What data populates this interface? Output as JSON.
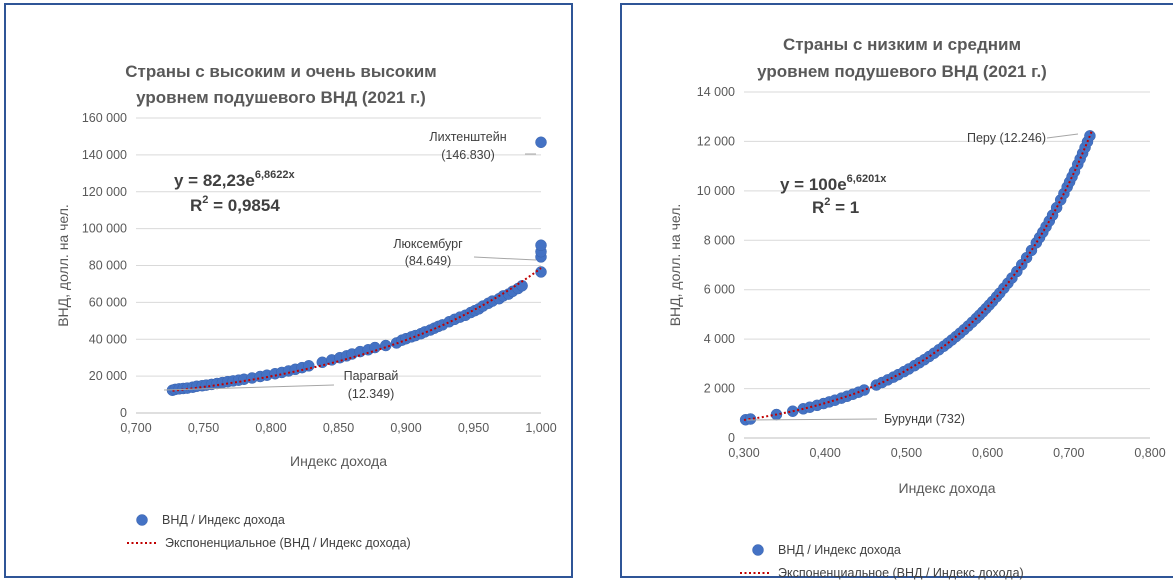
{
  "colors": {
    "marker": "#4472c4",
    "trendline": "#c00000",
    "border": "#2f5597"
  },
  "chart_data": [
    {
      "type": "scatter",
      "title_line1": "Страны с высоким и очень высоким",
      "title_line2": "уровнем подушевого ВНД (2021 г.)",
      "xlabel": "Индекс дохода",
      "ylabel": "ВНД, долл. на чел.",
      "xlim": [
        0.7,
        1.0
      ],
      "ylim": [
        0,
        160000
      ],
      "grid": "horizontal",
      "legend_position": "bottom",
      "xticks": [
        "0,700",
        "0,750",
        "0,800",
        "0,850",
        "0,900",
        "0,950",
        "1,000"
      ],
      "yticks": [
        "0",
        "20 000",
        "40 000",
        "60 000",
        "80 000",
        "100 000",
        "120 000",
        "140 000",
        "160 000"
      ],
      "equation_base": "y = 82,23e",
      "equation_exp": "6,8622x",
      "r2_prefix": "R",
      "r2_sup": "2",
      "r2_value": " = 0,9854",
      "annotations": [
        {
          "line1": "Лихтенштейн",
          "line2": "(146.830)",
          "x": 1.0,
          "y": 146830
        },
        {
          "line1": "Люксембург",
          "line2": "(84.649)",
          "x": 1.0,
          "y": 84649
        },
        {
          "line1": "Парагвай",
          "line2": "(12.349)",
          "x": 0.727,
          "y": 12349
        }
      ],
      "trend": {
        "a": 82.23,
        "b": 6.8622,
        "x_from": 0.727,
        "x_to": 1.0
      },
      "legend_points": "ВНД / Индекс дохода",
      "legend_trend": "Экспоненциальное (ВНД / Индекс дохода)",
      "points": [
        [
          0.727,
          12349
        ],
        [
          0.729,
          12800
        ],
        [
          0.732,
          13100
        ],
        [
          0.735,
          13300
        ],
        [
          0.738,
          13500
        ],
        [
          0.742,
          14000
        ],
        [
          0.745,
          14500
        ],
        [
          0.749,
          14800
        ],
        [
          0.752,
          15100
        ],
        [
          0.756,
          15500
        ],
        [
          0.76,
          16000
        ],
        [
          0.764,
          16500
        ],
        [
          0.768,
          17000
        ],
        [
          0.772,
          17400
        ],
        [
          0.776,
          17800
        ],
        [
          0.78,
          18300
        ],
        [
          0.786,
          19000
        ],
        [
          0.792,
          19800
        ],
        [
          0.797,
          20500
        ],
        [
          0.803,
          21300
        ],
        [
          0.808,
          22000
        ],
        [
          0.813,
          22800
        ],
        [
          0.818,
          23700
        ],
        [
          0.823,
          24600
        ],
        [
          0.828,
          25600
        ],
        [
          0.838,
          27500
        ],
        [
          0.845,
          28800
        ],
        [
          0.851,
          30000
        ],
        [
          0.856,
          31000
        ],
        [
          0.86,
          32000
        ],
        [
          0.866,
          33300
        ],
        [
          0.872,
          34300
        ],
        [
          0.877,
          35500
        ],
        [
          0.885,
          36600
        ],
        [
          0.893,
          38000
        ],
        [
          0.897,
          39500
        ],
        [
          0.9,
          40300
        ],
        [
          0.904,
          41300
        ],
        [
          0.907,
          42000
        ],
        [
          0.911,
          43000
        ],
        [
          0.914,
          44000
        ],
        [
          0.918,
          45000
        ],
        [
          0.921,
          46000
        ],
        [
          0.924,
          47000
        ],
        [
          0.927,
          47800
        ],
        [
          0.932,
          49500
        ],
        [
          0.936,
          50800
        ],
        [
          0.94,
          52000
        ],
        [
          0.944,
          53000
        ],
        [
          0.948,
          54500
        ],
        [
          0.951,
          55500
        ],
        [
          0.954,
          56500
        ],
        [
          0.957,
          58000
        ],
        [
          0.961,
          59500
        ],
        [
          0.964,
          60700
        ],
        [
          0.969,
          62000
        ],
        [
          0.972,
          63500
        ],
        [
          0.976,
          64500
        ],
        [
          0.979,
          66000
        ],
        [
          0.983,
          67500
        ],
        [
          0.986,
          69000
        ],
        [
          1.0,
          76500
        ],
        [
          1.0,
          84649
        ],
        [
          1.0,
          87500
        ],
        [
          1.0,
          91000
        ],
        [
          1.0,
          146830
        ]
      ]
    },
    {
      "type": "scatter",
      "title_line1": "Страны с низким и средним",
      "title_line2": "уровнем подушевого ВНД (2021 г.)",
      "xlabel": "Индекс дохода",
      "ylabel": "ВНД, долл. на чел.",
      "xlim": [
        0.3,
        0.8
      ],
      "ylim": [
        0,
        14000
      ],
      "grid": "horizontal",
      "legend_position": "bottom",
      "xticks": [
        "0,300",
        "0,400",
        "0,500",
        "0,600",
        "0,700",
        "0,800"
      ],
      "yticks": [
        "0",
        "2 000",
        "4 000",
        "6 000",
        "8 000",
        "10 000",
        "12 000",
        "14 000"
      ],
      "equation_base": "y = 100e",
      "equation_exp": "6,6201x",
      "r2_prefix": "R",
      "r2_sup": "2",
      "r2_value": " = 1",
      "annotations": [
        {
          "line1": "Перу (12.246)",
          "line2": "",
          "x": 0.726,
          "y": 12246
        },
        {
          "line1": "Бурунди (732)",
          "line2": "",
          "x": 0.302,
          "y": 732
        }
      ],
      "trend": {
        "a": 100,
        "b": 6.6201,
        "x_from": 0.3,
        "x_to": 0.728
      },
      "legend_points": "ВНД / Индекс дохода",
      "legend_trend": "Экспоненциальное (ВНД / Индекс дохода)",
      "points_auto": {
        "a": 100,
        "b": 6.6201,
        "x_values": [
          0.302,
          0.308,
          0.34,
          0.36,
          0.373,
          0.381,
          0.39,
          0.398,
          0.405,
          0.412,
          0.42,
          0.427,
          0.434,
          0.441,
          0.448,
          0.463,
          0.47,
          0.477,
          0.484,
          0.49,
          0.497,
          0.503,
          0.51,
          0.516,
          0.522,
          0.528,
          0.534,
          0.54,
          0.546,
          0.551,
          0.556,
          0.561,
          0.566,
          0.571,
          0.576,
          0.581,
          0.586,
          0.59,
          0.594,
          0.598,
          0.602,
          0.606,
          0.611,
          0.615,
          0.62,
          0.625,
          0.63,
          0.636,
          0.642,
          0.648,
          0.654,
          0.66,
          0.664,
          0.668,
          0.672,
          0.676,
          0.68,
          0.685,
          0.69,
          0.694,
          0.698,
          0.701,
          0.704,
          0.707,
          0.711,
          0.714,
          0.717,
          0.72,
          0.723,
          0.726
        ]
      }
    }
  ]
}
